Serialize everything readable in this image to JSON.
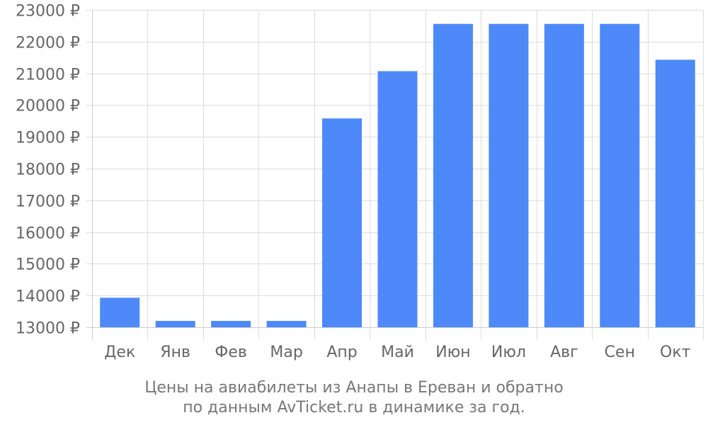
{
  "chart_data": {
    "type": "bar",
    "categories": [
      "Дек",
      "Янв",
      "Фев",
      "Мар",
      "Апр",
      "Май",
      "Июн",
      "Июл",
      "Авг",
      "Сен",
      "Окт"
    ],
    "values": [
      13930,
      13200,
      13200,
      13200,
      19580,
      21070,
      22560,
      22560,
      22560,
      22560,
      21430
    ],
    "title": "",
    "xlabel": "",
    "ylabel": "",
    "ylim": [
      13000,
      23000
    ],
    "yticks": [
      13000,
      14000,
      15000,
      16000,
      17000,
      18000,
      19000,
      20000,
      21000,
      22000,
      23000
    ],
    "currency_suffix": "₽",
    "grid": true,
    "bar_color": "#4d89f9"
  },
  "caption": {
    "line1": "Цены на авиабилеты из Анапы в Ереван и обратно",
    "line2": "по данным AvTicket.ru в динамике за год."
  }
}
